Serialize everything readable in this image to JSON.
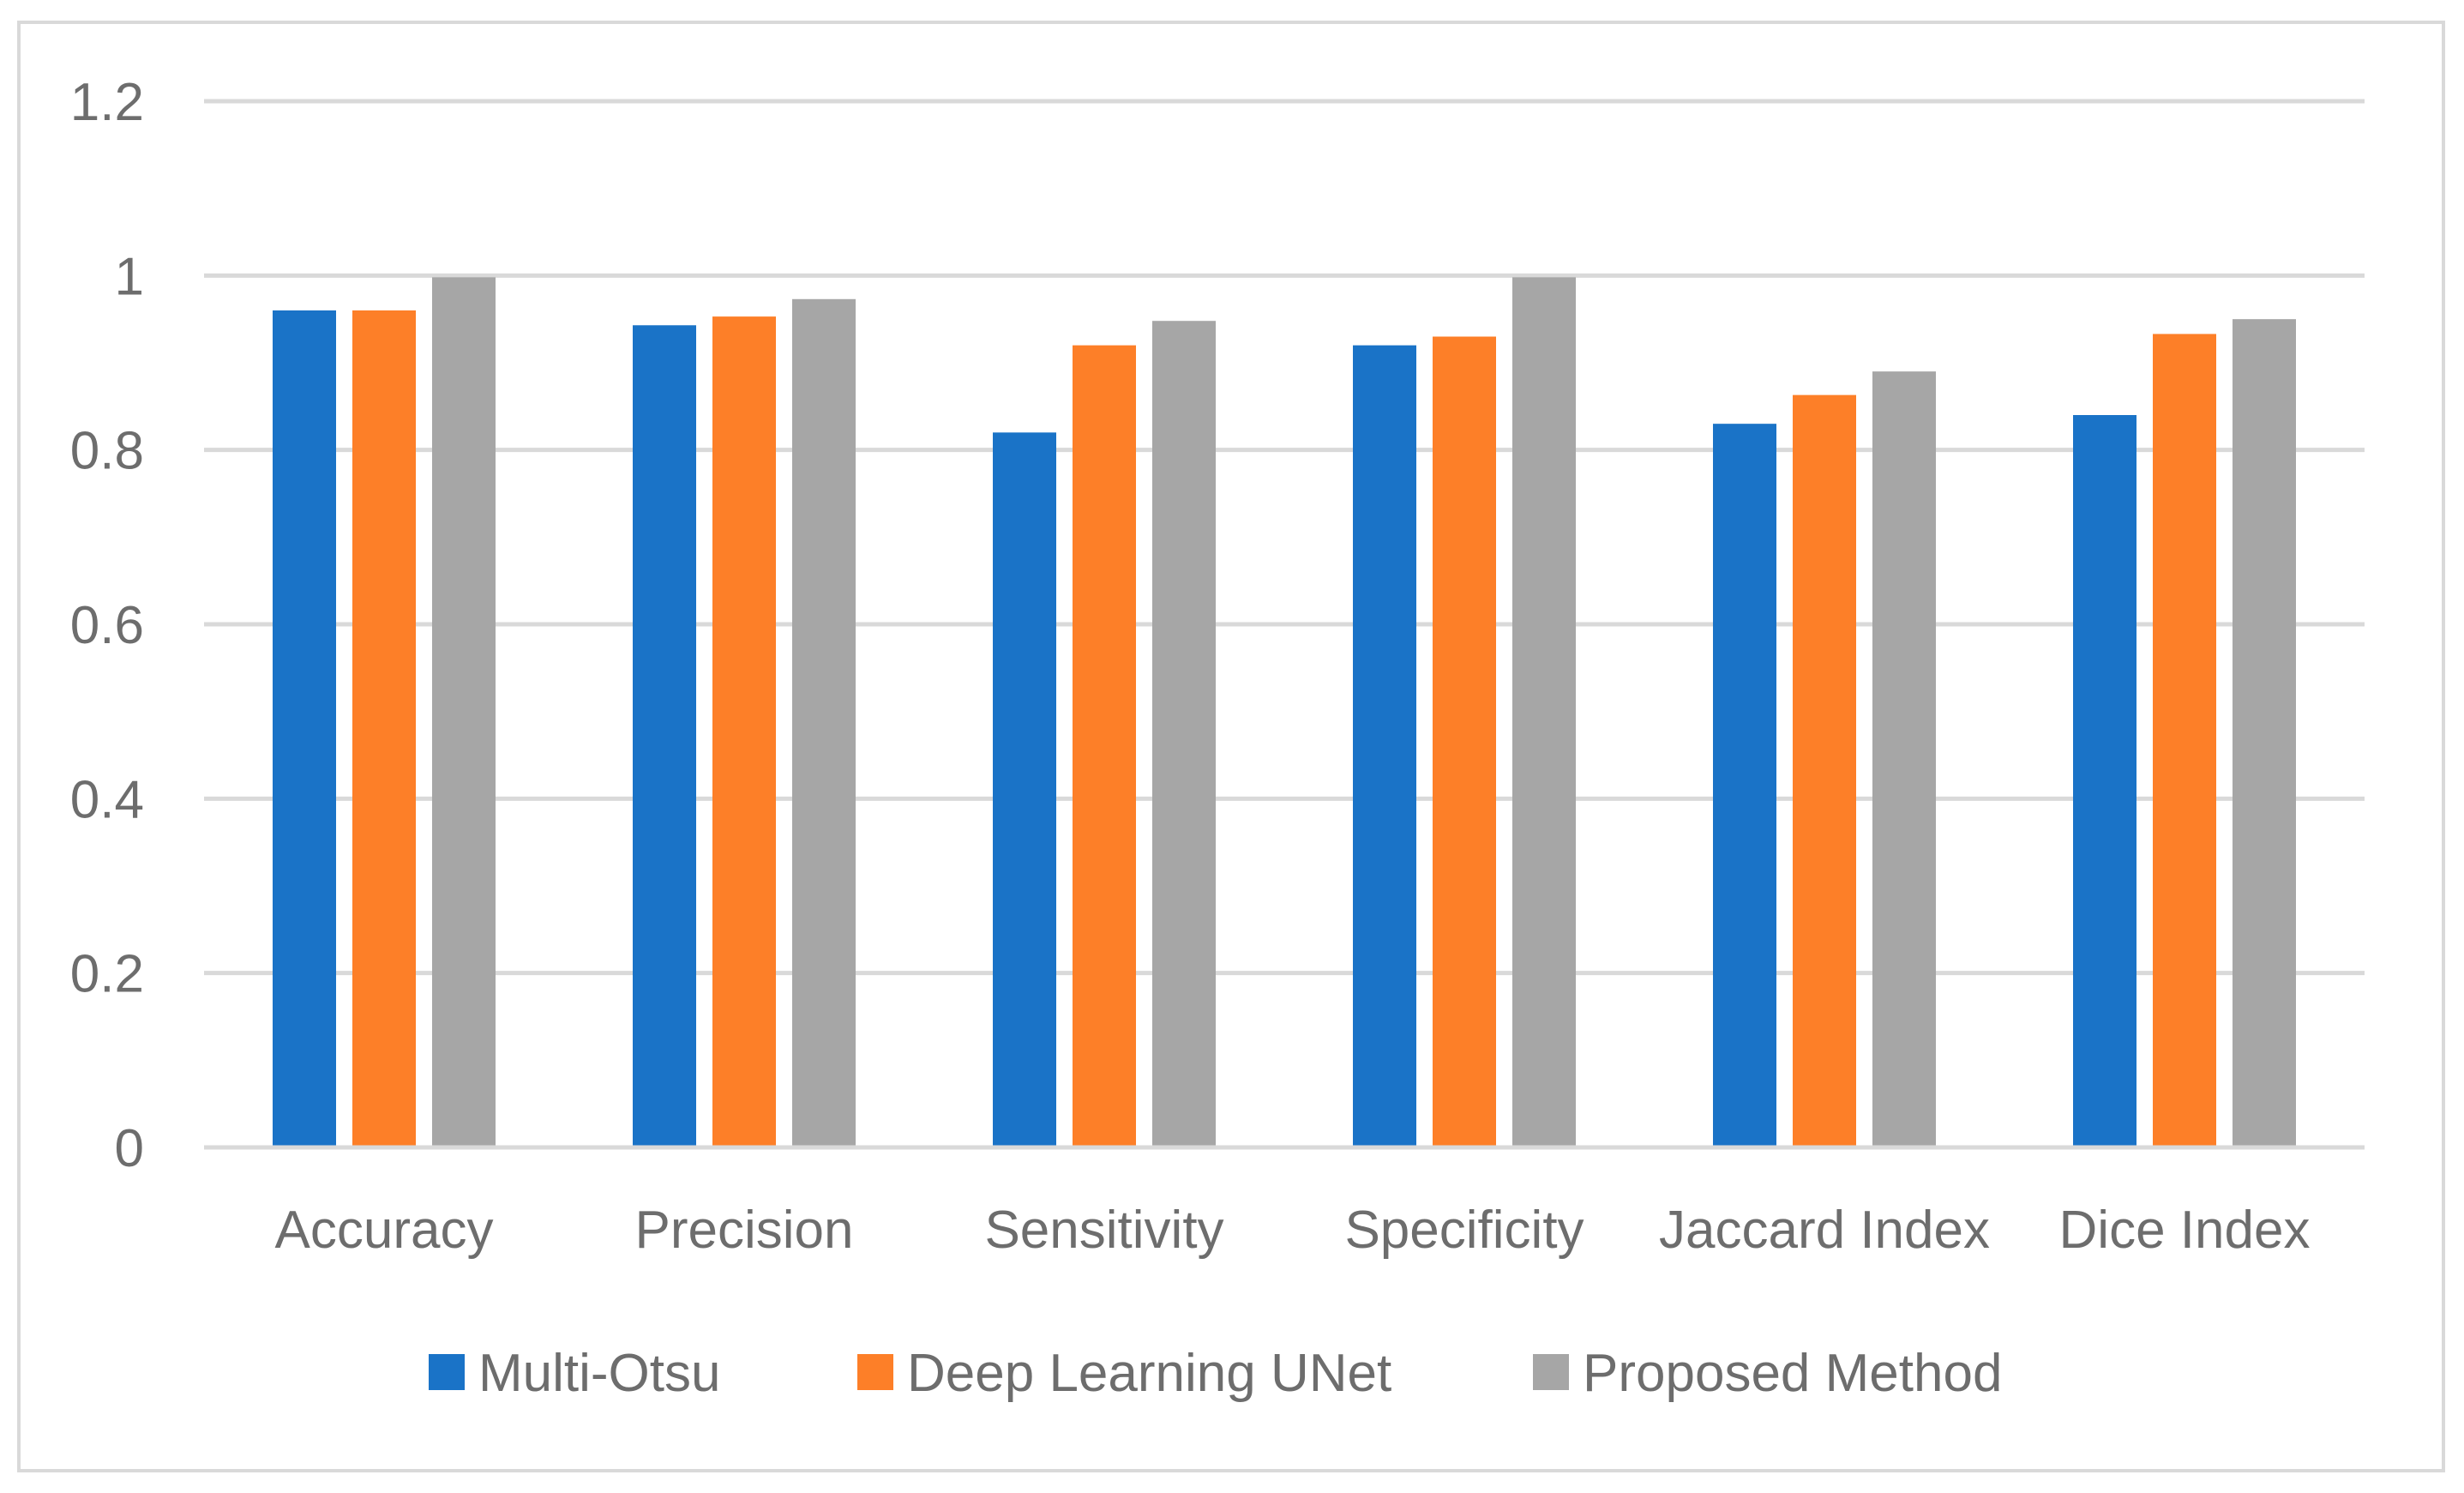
{
  "chart_data": {
    "type": "bar",
    "title": "",
    "xlabel": "",
    "ylabel": "",
    "categories": [
      "Accuracy",
      "Precision",
      "Sensitivity",
      "Specificity",
      "Jaccard Index",
      "Dice Index"
    ],
    "series": [
      {
        "name": "Multi-Otsu",
        "color": "#1a73c7",
        "values": [
          0.96,
          0.943,
          0.82,
          0.92,
          0.83,
          0.84
        ]
      },
      {
        "name": "Deep Learning UNet",
        "color": "#fd7f28",
        "values": [
          0.96,
          0.953,
          0.92,
          0.93,
          0.863,
          0.933
        ]
      },
      {
        "name": "Proposed Method",
        "color": "#a6a6a6",
        "values": [
          0.998,
          0.973,
          0.948,
          0.998,
          0.89,
          0.95
        ]
      }
    ],
    "ylim": [
      0,
      1.2
    ],
    "yticks": [
      "0",
      "0.2",
      "0.4",
      "0.6",
      "0.8",
      "1",
      "1.2"
    ],
    "grid": true,
    "legend_position": "bottom"
  }
}
